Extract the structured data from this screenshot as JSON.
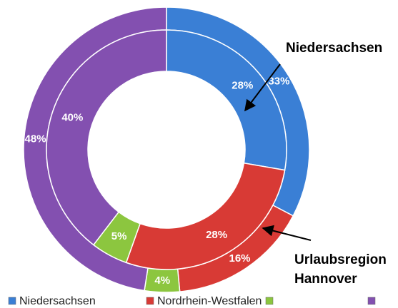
{
  "chart_data": {
    "type": "donut",
    "categories": [
      "Niedersachsen",
      "Nordrhein-Westfalen",
      null,
      null
    ],
    "colors": [
      "#3a7fd5",
      "#d83a35",
      "#8cc63f",
      "#8350b0"
    ],
    "series": [
      {
        "values": [
          33,
          16,
          4,
          48
        ],
        "value_labels": [
          "33%",
          "16%",
          "4%",
          "48%"
        ]
      },
      {
        "values": [
          28,
          28,
          5,
          40
        ],
        "value_labels": [
          "28%",
          "28%",
          "5%",
          "40%"
        ]
      }
    ],
    "annotations": [
      "Niedersachsen",
      "Urlaubsregion",
      "Hannover"
    ],
    "legend": "bottom"
  }
}
